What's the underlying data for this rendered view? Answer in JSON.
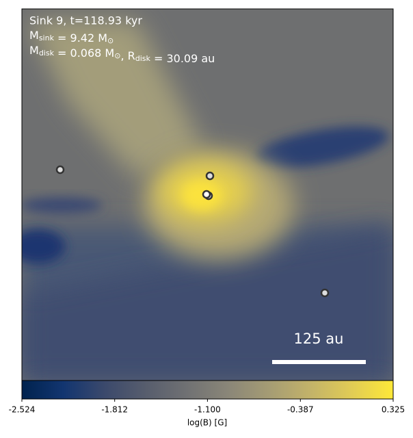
{
  "chart_data": {
    "type": "heatmap",
    "title": "Sink 9, t=118.93 kyr",
    "annotations": [
      [
        {
          "text": "M"
        },
        {
          "sub": "sink"
        },
        {
          "text": " = 9.42 M"
        },
        {
          "sub": "⊙"
        }
      ],
      [
        {
          "text": "M"
        },
        {
          "sub": "disk"
        },
        {
          "text": " = 0.068 M"
        },
        {
          "sub": "⊙"
        },
        {
          "text": ", R"
        },
        {
          "sub": "disk"
        },
        {
          "text": " = 30.09 au"
        }
      ]
    ],
    "scale_bar": "125 au",
    "colormap": "cividis",
    "colorbar": {
      "label": "log(B) [G]",
      "lim": [
        -2.524,
        0.325
      ],
      "ticks": [
        -2.524,
        -1.812,
        {
          "value": -1.1,
          "label": "-1.100"
        },
        -0.387,
        0.325
      ]
    }
  }
}
